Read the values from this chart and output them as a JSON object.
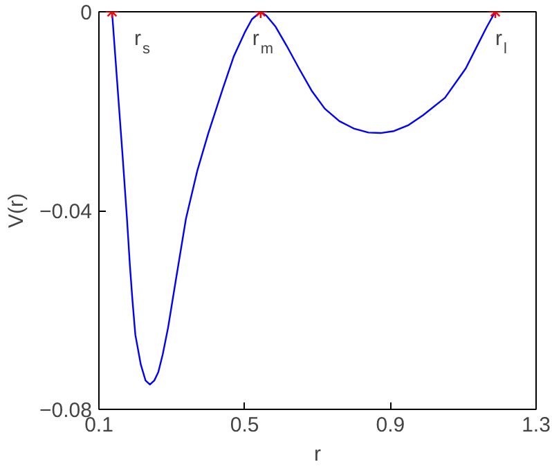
{
  "chart_data": {
    "type": "line",
    "xlabel": "r",
    "ylabel": "V(r)",
    "xlim": [
      0.1,
      1.3
    ],
    "ylim": [
      -0.08,
      0
    ],
    "xticks": [
      0.1,
      0.5,
      0.9,
      1.3
    ],
    "yticks": [
      -0.08,
      -0.04,
      0
    ],
    "series": [
      {
        "color": "#0000ff",
        "x": [
          0.136,
          0.145,
          0.155,
          0.165,
          0.177,
          0.185,
          0.192,
          0.2,
          0.215,
          0.228,
          0.24,
          0.252,
          0.263,
          0.275,
          0.29,
          0.31,
          0.339,
          0.37,
          0.4,
          0.44,
          0.47,
          0.5,
          0.52,
          0.544,
          0.56,
          0.585,
          0.615,
          0.65,
          0.685,
          0.72,
          0.76,
          0.8,
          0.84,
          0.873,
          0.91,
          0.95,
          0.99,
          1.05,
          1.107,
          1.14,
          1.165,
          1.188
        ],
        "values": [
          0,
          -0.009,
          -0.019,
          -0.029,
          -0.0416,
          -0.051,
          -0.058,
          -0.065,
          -0.071,
          -0.0742,
          -0.075,
          -0.0742,
          -0.0725,
          -0.069,
          -0.0635,
          -0.0545,
          -0.0416,
          -0.032,
          -0.0245,
          -0.0155,
          -0.009,
          -0.0042,
          -0.0015,
          0,
          -0.0008,
          -0.003,
          -0.0068,
          -0.0115,
          -0.016,
          -0.0195,
          -0.022,
          -0.0235,
          -0.0243,
          -0.0244,
          -0.024,
          -0.0228,
          -0.0208,
          -0.0173,
          -0.0114,
          -0.0066,
          -0.003,
          0
        ]
      },
      {
        "type": "scatter",
        "color": "#ff0000",
        "marker": "cross",
        "x": [
          0.136,
          0.544,
          1.188
        ],
        "values": [
          0,
          0,
          0
        ]
      }
    ],
    "annotations": [
      {
        "text": "r$_{s}$",
        "x": 0.136,
        "y": 0
      },
      {
        "text": "r$_{m}$",
        "x": 0.544,
        "y": 0
      },
      {
        "text": "r$_{l}$",
        "x": 1.188,
        "y": 0
      }
    ]
  }
}
